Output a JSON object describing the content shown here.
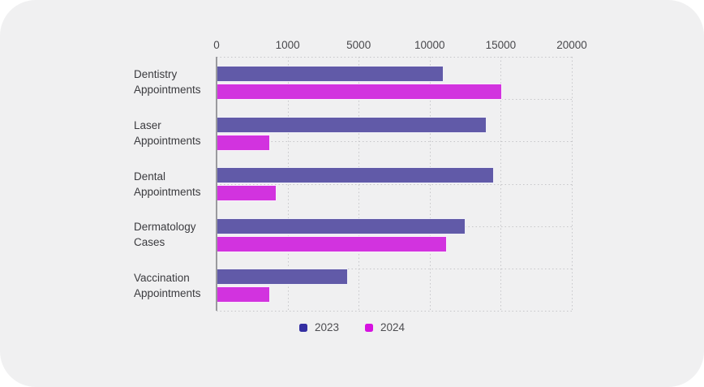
{
  "colors": {
    "card_bg": "#f0f0f1",
    "page_bg": "#ffffff",
    "grid": "#c6c6c9",
    "axis": "#9a9a9e",
    "tick_text": "#48484c",
    "category_text": "#3b3b3f",
    "legend_text": "#4d4d51"
  },
  "chart_data": {
    "type": "bar",
    "orientation": "horizontal",
    "title": "",
    "categories": [
      [
        "Dentistry",
        "Appointments"
      ],
      [
        "Laser",
        "Appointments"
      ],
      [
        "Dental",
        "Appointments"
      ],
      [
        "Dermatology",
        "Cases"
      ],
      [
        "Vaccination",
        "Appointments"
      ]
    ],
    "series": [
      {
        "name": "2023",
        "bar_color": "#615aa8",
        "marker_color": "#342fa2",
        "values": [
          11000,
          14000,
          14500,
          12500,
          4400
        ]
      },
      {
        "name": "2024",
        "bar_color": "#d233df",
        "marker_color": "#d612e0",
        "values": [
          15100,
          750,
          850,
          11200,
          750
        ]
      }
    ],
    "x_ticks": [
      0,
      1000,
      5000,
      10000,
      15000,
      20000
    ],
    "x_tick_labels": [
      "0",
      "1000",
      "5000",
      "10000",
      "15000",
      "20000"
    ],
    "scale_note": "ticks equally spaced, values interpolated piecewise between ticks",
    "xlim_label": [
      0,
      20000
    ],
    "grid": {
      "h_divisions": 6,
      "style": "dotted",
      "axis_side": "left",
      "ticks_side": "top"
    },
    "legend_position": "bottom-center"
  }
}
